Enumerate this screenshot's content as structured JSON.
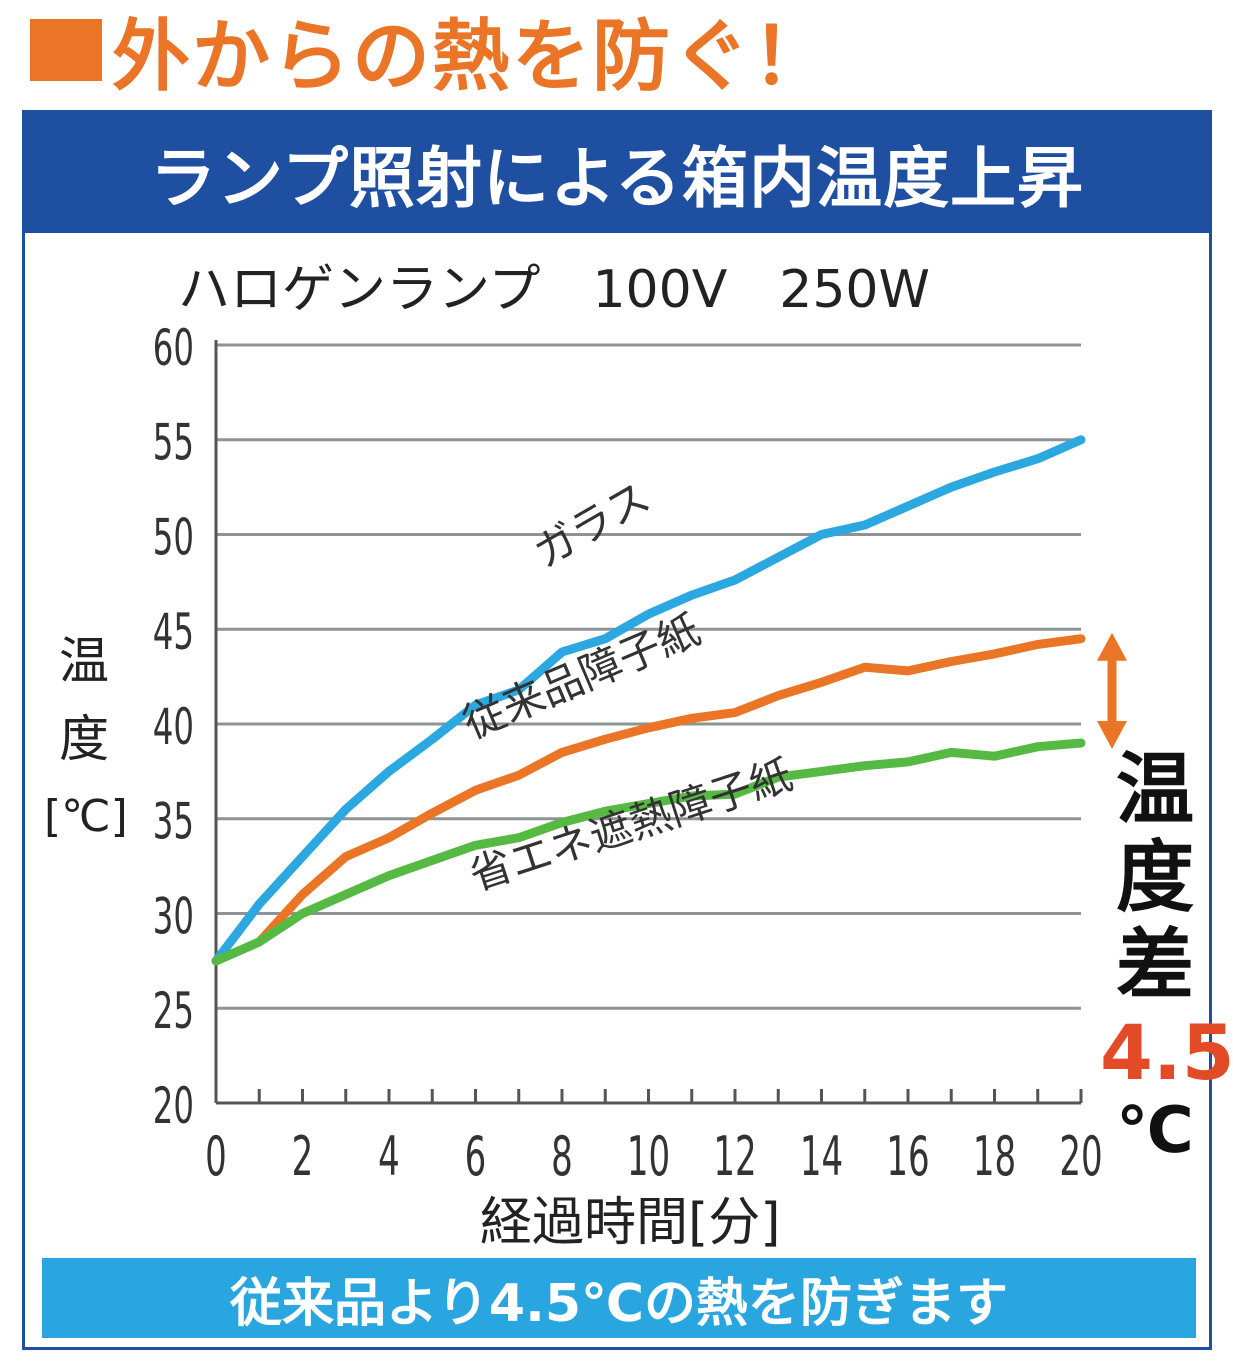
{
  "headline": {
    "text": "外からの熱を防ぐ！",
    "color": "#ea7526"
  },
  "panel": {
    "title": "ランプ照射による箱内温度上昇",
    "title_bg": "#1f4fa0"
  },
  "subtitle": "ハロゲンランプ　100V　250W",
  "chart_data": {
    "type": "line",
    "title": "ランプ照射による箱内温度上昇",
    "subtitle": "ハロゲンランプ　100V　250W",
    "xlabel": "経過時間[分]",
    "ylabel": "温度[℃]",
    "xlim": [
      0,
      20
    ],
    "ylim": [
      20,
      60
    ],
    "x": [
      0,
      1,
      2,
      3,
      4,
      5,
      6,
      7,
      8,
      9,
      10,
      11,
      12,
      13,
      14,
      15,
      16,
      17,
      18,
      19,
      20
    ],
    "x_ticks": [
      "0",
      "2",
      "4",
      "6",
      "8",
      "10",
      "12",
      "14",
      "16",
      "18",
      "20"
    ],
    "y_ticks": [
      "20",
      "25",
      "30",
      "35",
      "40",
      "45",
      "50",
      "55",
      "60"
    ],
    "grid": true,
    "series": [
      {
        "name": "ガラス",
        "color": "#2ba8e0",
        "values": [
          27.5,
          30.5,
          33,
          35.5,
          37.5,
          39.2,
          41,
          41.8,
          43.8,
          44.5,
          45.8,
          46.8,
          47.6,
          48.8,
          50,
          50.5,
          51.5,
          52.5,
          53.3,
          54,
          55
        ]
      },
      {
        "name": "従来品障子紙",
        "color": "#ea7526",
        "values": [
          27.5,
          28.5,
          31,
          33,
          34,
          35.3,
          36.5,
          37.3,
          38.5,
          39.2,
          39.8,
          40.3,
          40.6,
          41.5,
          42.2,
          43,
          42.8,
          43.3,
          43.7,
          44.2,
          44.5
        ]
      },
      {
        "name": "省エネ遮熱障子紙",
        "color": "#56b944",
        "values": [
          27.5,
          28.5,
          30,
          31,
          32,
          32.8,
          33.6,
          34,
          34.8,
          35.4,
          35.8,
          36.2,
          36.3,
          37.2,
          37.5,
          37.8,
          38,
          38.5,
          38.3,
          38.8,
          39
        ]
      }
    ],
    "annotation": {
      "label": "温度差",
      "value": "4.5",
      "unit": "℃",
      "value_color": "#e24b26",
      "arrow_color": "#ea7526"
    }
  },
  "footer": {
    "text": "従来品より4.5℃の熱を防ぎます",
    "bg": "#29a6e0"
  }
}
